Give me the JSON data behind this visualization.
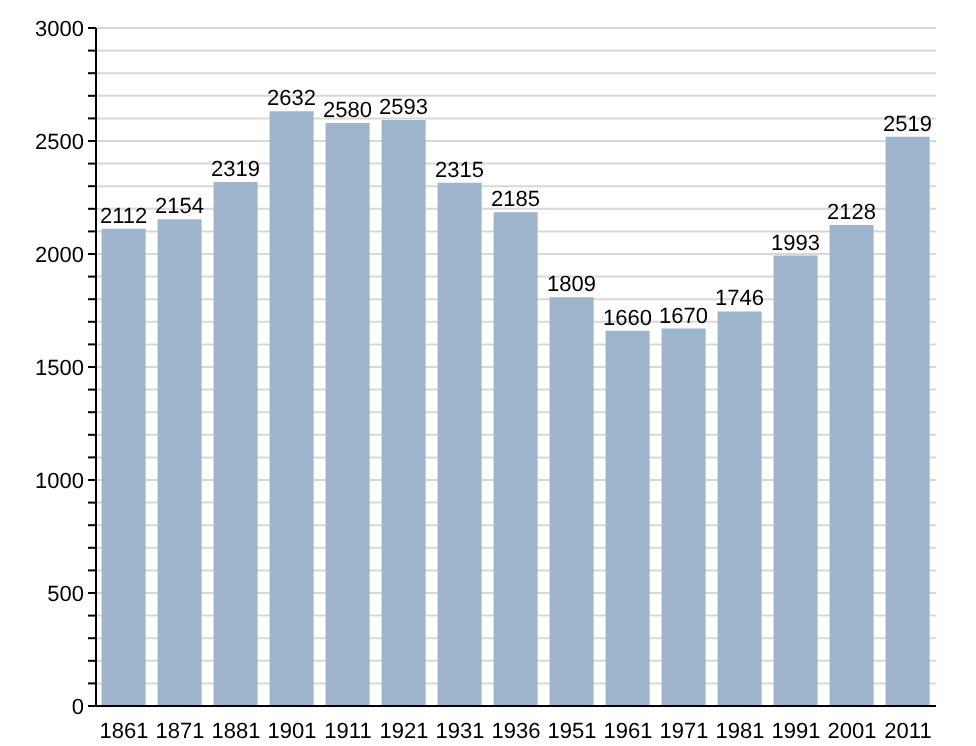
{
  "chart_data": {
    "type": "bar",
    "categories": [
      "1861",
      "1871",
      "1881",
      "1901",
      "1911",
      "1921",
      "1931",
      "1936",
      "1951",
      "1961",
      "1971",
      "1981",
      "1991",
      "2001",
      "2011"
    ],
    "values": [
      2112,
      2154,
      2319,
      2632,
      2580,
      2593,
      2315,
      2185,
      1809,
      1660,
      1670,
      1746,
      1993,
      2128,
      2519
    ],
    "color": "#9db4cd",
    "data_labels": true,
    "grid": "y",
    "ylim": [
      0,
      3000
    ],
    "yticks": [
      0,
      {
        "value": 100,
        "label": null
      },
      {
        "value": 200,
        "label": null
      },
      {
        "value": 300,
        "label": null
      },
      {
        "value": 400,
        "label": null
      },
      500,
      {
        "value": 600,
        "label": null
      },
      {
        "value": 700,
        "label": null
      },
      {
        "value": 800,
        "label": null
      },
      {
        "value": 900,
        "label": null
      },
      1000,
      {
        "value": 1100,
        "label": null
      },
      {
        "value": 1200,
        "label": null
      },
      {
        "value": 1300,
        "label": null
      },
      {
        "value": 1400,
        "label": null
      },
      1500,
      {
        "value": 1600,
        "label": null
      },
      {
        "value": 1700,
        "label": null
      },
      {
        "value": 1800,
        "label": null
      },
      {
        "value": 1900,
        "label": null
      },
      2000,
      {
        "value": 2100,
        "label": null
      },
      {
        "value": 2200,
        "label": null
      },
      {
        "value": 2300,
        "label": null
      },
      {
        "value": 2400,
        "label": null
      },
      2500,
      {
        "value": 2600,
        "label": null
      },
      {
        "value": 2700,
        "label": null
      },
      {
        "value": 2800,
        "label": null
      },
      {
        "value": 2900,
        "label": null
      },
      3000
    ]
  }
}
